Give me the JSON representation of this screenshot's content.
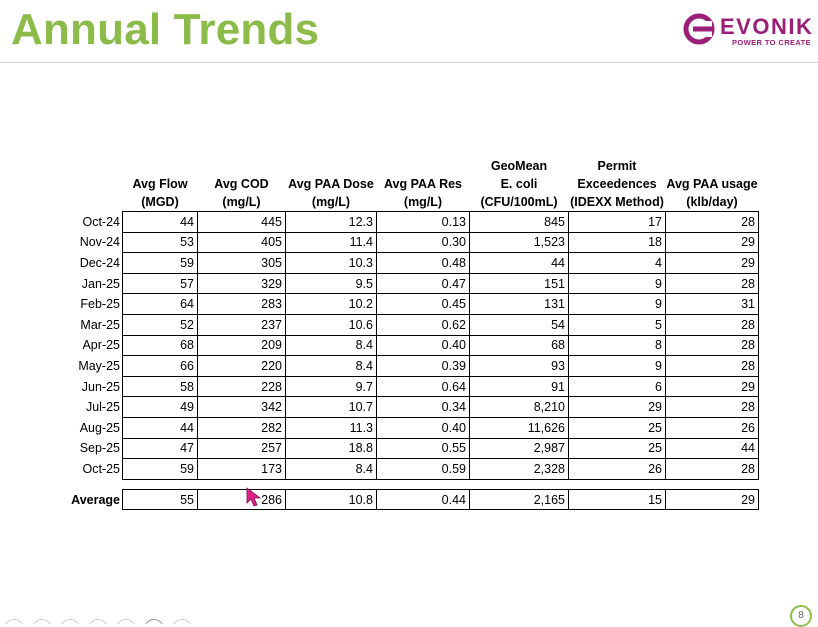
{
  "header": {
    "title": "Annual Trends",
    "brand": "EVONIK",
    "tagline": "POWER TO CREATE",
    "brand_color": "#9b1e77",
    "title_color": "#8dbb4a"
  },
  "table": {
    "columns": [
      {
        "line1": "",
        "line2": "Avg Flow",
        "line3": "(MGD)"
      },
      {
        "line1": "",
        "line2": "Avg COD",
        "line3": "(mg/L)"
      },
      {
        "line1": "",
        "line2": "Avg PAA Dose",
        "line3": "(mg/L)"
      },
      {
        "line1": "",
        "line2": "Avg  PAA Res",
        "line3": "(mg/L)"
      },
      {
        "line1": "GeoMean",
        "line2": "E. coli",
        "line3": "(CFU/100mL)"
      },
      {
        "line1": "Permit",
        "line2": "Exceedences",
        "line3": "(IDEXX Method)"
      },
      {
        "line1": "",
        "line2": "Avg PAA usage",
        "line3": "(klb/day)"
      }
    ],
    "rows": [
      {
        "label": "Oct-24",
        "values": [
          "44",
          "445",
          "12.3",
          "0.13",
          "845",
          "17",
          "28"
        ]
      },
      {
        "label": "Nov-24",
        "values": [
          "53",
          "405",
          "11.4",
          "0.30",
          "1,523",
          "18",
          "29"
        ]
      },
      {
        "label": "Dec-24",
        "values": [
          "59",
          "305",
          "10.3",
          "0.48",
          "44",
          "4",
          "29"
        ]
      },
      {
        "label": "Jan-25",
        "values": [
          "57",
          "329",
          "9.5",
          "0.47",
          "151",
          "9",
          "28"
        ]
      },
      {
        "label": "Feb-25",
        "values": [
          "64",
          "283",
          "10.2",
          "0.45",
          "131",
          "9",
          "31"
        ]
      },
      {
        "label": "Mar-25",
        "values": [
          "52",
          "237",
          "10.6",
          "0.62",
          "54",
          "5",
          "28"
        ]
      },
      {
        "label": "Apr-25",
        "values": [
          "68",
          "209",
          "8.4",
          "0.40",
          "68",
          "8",
          "28"
        ]
      },
      {
        "label": "May-25",
        "values": [
          "66",
          "220",
          "8.4",
          "0.39",
          "93",
          "9",
          "28"
        ]
      },
      {
        "label": "Jun-25",
        "values": [
          "58",
          "228",
          "9.7",
          "0.64",
          "91",
          "6",
          "29"
        ]
      },
      {
        "label": "Jul-25",
        "values": [
          "49",
          "342",
          "10.7",
          "0.34",
          "8,210",
          "29",
          "28"
        ]
      },
      {
        "label": "Aug-25",
        "values": [
          "44",
          "282",
          "11.3",
          "0.40",
          "11,626",
          "25",
          "26"
        ]
      },
      {
        "label": "Sep-25",
        "values": [
          "47",
          "257",
          "18.8",
          "0.55",
          "2,987",
          "25",
          "44"
        ]
      },
      {
        "label": "Oct-25",
        "values": [
          "59",
          "173",
          "8.4",
          "0.59",
          "2,328",
          "26",
          "28"
        ]
      }
    ],
    "average": {
      "label": "Average",
      "values": [
        "55",
        "286",
        "10.8",
        "0.44",
        "2,165",
        "15",
        "29"
      ]
    }
  },
  "footer": {
    "page_number": "8"
  },
  "icons": {
    "logo": "evonik-logo-icon",
    "cursor": "pen-cursor-icon"
  }
}
